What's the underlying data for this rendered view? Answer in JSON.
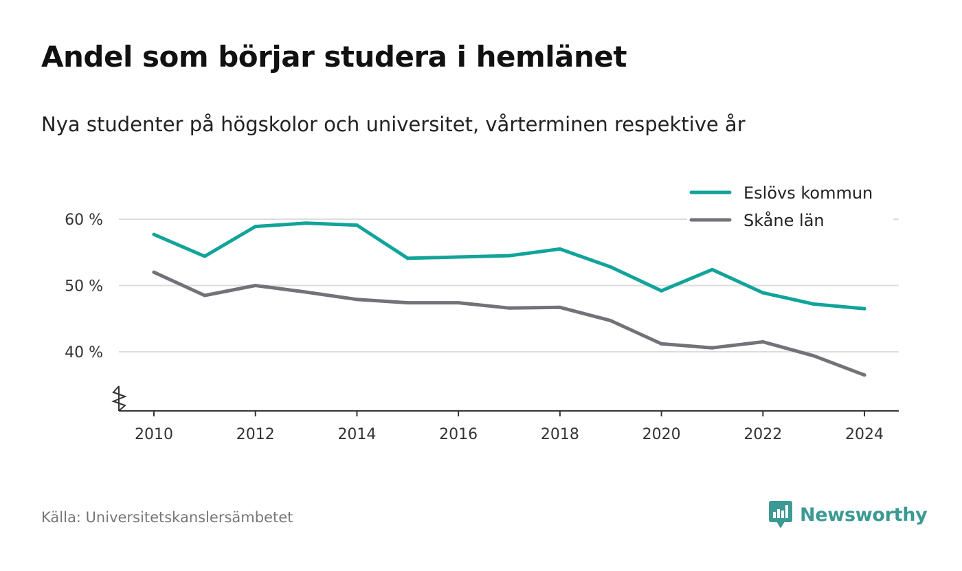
{
  "title": "Andel som börjar studera i hemlänet",
  "subtitle": "Nya studenter på högskolor och universitet, vårterminen respektive år",
  "source": "Källa: Universitetskanslersämbetet",
  "brand": {
    "name": "Newsworthy",
    "icon": "newsworthy-logo-icon",
    "color": "#3b9a94"
  },
  "chart_data": {
    "type": "line",
    "x": [
      2010,
      2011,
      2012,
      2013,
      2014,
      2015,
      2016,
      2017,
      2018,
      2019,
      2020,
      2021,
      2022,
      2023,
      2024
    ],
    "x_ticks": [
      2010,
      2012,
      2014,
      2016,
      2018,
      2020,
      2022,
      2024
    ],
    "y_ticks": [
      {
        "value": 40,
        "label": "40 %"
      },
      {
        "value": 50,
        "label": "50 %"
      },
      {
        "value": 60,
        "label": "60 %"
      }
    ],
    "ylim": [
      31,
      63
    ],
    "xlim": [
      2009.35,
      2024.7
    ],
    "grid": true,
    "axis_break": true,
    "legend_position": "top-right",
    "series": [
      {
        "name": "Eslövs kommun",
        "color": "#12a39a",
        "values": [
          57.7,
          54.4,
          58.9,
          59.4,
          59.1,
          54.1,
          54.3,
          54.5,
          55.5,
          52.8,
          49.2,
          52.4,
          48.9,
          47.2,
          46.5
        ]
      },
      {
        "name": "Skåne län",
        "color": "#727279",
        "values": [
          52.0,
          48.5,
          50.0,
          49.0,
          47.9,
          47.4,
          47.4,
          46.6,
          46.7,
          44.7,
          41.2,
          40.6,
          41.5,
          39.4,
          36.5
        ]
      }
    ]
  }
}
